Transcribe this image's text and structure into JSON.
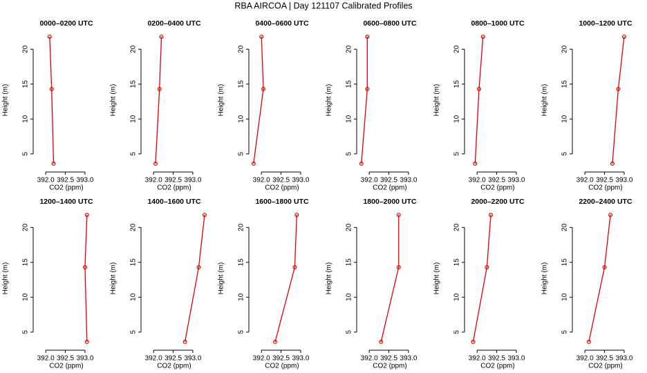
{
  "title": "RBA AIRCOA |  Day 121107  Calibrated Profiles",
  "chart_data": [
    {
      "type": "line",
      "title": "0000–0200 UTC",
      "xlabel": "CO2 (ppm)",
      "ylabel": "Height (m)",
      "color": "#e00000",
      "x": [
        392.2,
        392.15,
        392.1
      ],
      "values": [
        3.6,
        14.3,
        21.8
      ],
      "xlim": [
        391.75,
        393.3
      ],
      "ylim": [
        2.8,
        22.6
      ],
      "xticks": [
        {
          "value": 392,
          "label": "392.0"
        },
        392.5,
        {
          "value": 393,
          "label": "393.0"
        }
      ],
      "yticks": [
        5,
        10,
        15,
        20
      ]
    },
    {
      "type": "line",
      "title": "0200–0400 UTC",
      "xlabel": "CO2 (ppm)",
      "ylabel": "Height (m)",
      "color": "#e00000",
      "x": [
        392.05,
        392.15,
        392.2
      ],
      "values": [
        3.6,
        14.3,
        21.8
      ],
      "xlim": [
        391.75,
        393.3
      ],
      "ylim": [
        2.8,
        22.6
      ],
      "xticks": [
        {
          "value": 392,
          "label": "392.0"
        },
        392.5,
        {
          "value": 393,
          "label": "393.0"
        }
      ],
      "yticks": [
        5,
        10,
        15,
        20
      ]
    },
    {
      "type": "line",
      "title": "0400–0600 UTC",
      "xlabel": "CO2 (ppm)",
      "ylabel": "Height (m)",
      "color": "#e00000",
      "x": [
        391.8,
        392.05,
        392.0
      ],
      "values": [
        3.6,
        14.3,
        21.8
      ],
      "xlim": [
        391.75,
        393.3
      ],
      "ylim": [
        2.8,
        22.6
      ],
      "xticks": [
        {
          "value": 392,
          "label": "392.0"
        },
        392.5,
        {
          "value": 393,
          "label": "393.0"
        }
      ],
      "yticks": [
        5,
        10,
        15,
        20
      ]
    },
    {
      "type": "line",
      "title": "0600–0800 UTC",
      "xlabel": "CO2 (ppm)",
      "ylabel": "Height (m)",
      "color": "#e00000",
      "x": [
        391.8,
        391.95,
        391.95
      ],
      "values": [
        3.6,
        14.3,
        21.8
      ],
      "xlim": [
        391.75,
        393.3
      ],
      "ylim": [
        2.8,
        22.6
      ],
      "xticks": [
        {
          "value": 392,
          "label": "392.0"
        },
        392.5,
        {
          "value": 393,
          "label": "393.0"
        }
      ],
      "yticks": [
        5,
        10,
        15,
        20
      ]
    },
    {
      "type": "line",
      "title": "0800–1000 UTC",
      "xlabel": "CO2 (ppm)",
      "ylabel": "Height (m)",
      "color": "#e00000",
      "x": [
        391.95,
        392.05,
        392.15
      ],
      "values": [
        3.6,
        14.3,
        21.8
      ],
      "xlim": [
        391.75,
        393.3
      ],
      "ylim": [
        2.8,
        22.6
      ],
      "xticks": [
        {
          "value": 392,
          "label": "392.0"
        },
        392.5,
        {
          "value": 393,
          "label": "393.0"
        }
      ],
      "yticks": [
        5,
        10,
        15,
        20
      ]
    },
    {
      "type": "line",
      "title": "1000–1200 UTC",
      "xlabel": "CO2 (ppm)",
      "ylabel": "Height (m)",
      "color": "#e00000",
      "x": [
        392.7,
        392.85,
        393.0
      ],
      "values": [
        3.6,
        14.3,
        21.8
      ],
      "xlim": [
        391.75,
        393.3
      ],
      "ylim": [
        2.8,
        22.6
      ],
      "xticks": [
        {
          "value": 392,
          "label": "392.0"
        },
        392.5,
        {
          "value": 393,
          "label": "393.0"
        }
      ],
      "yticks": [
        5,
        10,
        15,
        20
      ]
    },
    {
      "type": "line",
      "title": "1200–1400 UTC",
      "xlabel": "CO2 (ppm)",
      "ylabel": "Height (m)",
      "color": "#e00000",
      "x": [
        393.05,
        393.0,
        393.05
      ],
      "values": [
        3.6,
        14.3,
        21.8
      ],
      "xlim": [
        391.75,
        393.3
      ],
      "ylim": [
        2.8,
        22.6
      ],
      "xticks": [
        {
          "value": 392,
          "label": "392.0"
        },
        392.5,
        {
          "value": 393,
          "label": "393.0"
        }
      ],
      "yticks": [
        5,
        10,
        15,
        20
      ]
    },
    {
      "type": "line",
      "title": "1400–1600 UTC",
      "xlabel": "CO2 (ppm)",
      "ylabel": "Height (m)",
      "color": "#e00000",
      "x": [
        392.8,
        393.15,
        393.3
      ],
      "values": [
        3.6,
        14.3,
        21.8
      ],
      "xlim": [
        391.75,
        393.3
      ],
      "ylim": [
        2.8,
        22.6
      ],
      "xticks": [
        {
          "value": 392,
          "label": "392.0"
        },
        392.5,
        {
          "value": 393,
          "label": "393.0"
        }
      ],
      "yticks": [
        5,
        10,
        15,
        20
      ]
    },
    {
      "type": "line",
      "title": "1600–1800 UTC",
      "xlabel": "CO2 (ppm)",
      "ylabel": "Height (m)",
      "color": "#e00000",
      "x": [
        392.35,
        392.85,
        392.9
      ],
      "values": [
        3.6,
        14.3,
        21.8
      ],
      "xlim": [
        391.75,
        393.3
      ],
      "ylim": [
        2.8,
        22.6
      ],
      "xticks": [
        {
          "value": 392,
          "label": "392.0"
        },
        392.5,
        {
          "value": 393,
          "label": "393.0"
        }
      ],
      "yticks": [
        5,
        10,
        15,
        20
      ]
    },
    {
      "type": "line",
      "title": "1800–2000 UTC",
      "xlabel": "CO2 (ppm)",
      "ylabel": "Height (m)",
      "color": "#e00000",
      "x": [
        392.3,
        392.75,
        392.75
      ],
      "values": [
        3.6,
        14.3,
        21.8
      ],
      "xlim": [
        391.75,
        393.3
      ],
      "ylim": [
        2.8,
        22.6
      ],
      "xticks": [
        {
          "value": 392,
          "label": "392.0"
        },
        392.5,
        {
          "value": 393,
          "label": "393.0"
        }
      ],
      "yticks": [
        5,
        10,
        15,
        20
      ]
    },
    {
      "type": "line",
      "title": "2000–2200 UTC",
      "xlabel": "CO2 (ppm)",
      "ylabel": "Height (m)",
      "color": "#e00000",
      "x": [
        391.9,
        392.25,
        392.35
      ],
      "values": [
        3.6,
        14.3,
        21.8
      ],
      "xlim": [
        391.75,
        393.3
      ],
      "ylim": [
        2.8,
        22.6
      ],
      "xticks": [
        {
          "value": 392,
          "label": "392.0"
        },
        392.5,
        {
          "value": 393,
          "label": "393.0"
        }
      ],
      "yticks": [
        5,
        10,
        15,
        20
      ]
    },
    {
      "type": "line",
      "title": "2200–2400 UTC",
      "xlabel": "CO2 (ppm)",
      "ylabel": "Height (m)",
      "color": "#e00000",
      "x": [
        392.1,
        392.5,
        392.65
      ],
      "values": [
        3.6,
        14.3,
        21.8
      ],
      "xlim": [
        391.75,
        393.3
      ],
      "ylim": [
        2.8,
        22.6
      ],
      "xticks": [
        {
          "value": 392,
          "label": "392.0"
        },
        392.5,
        {
          "value": 393,
          "label": "393.0"
        }
      ],
      "yticks": [
        5,
        10,
        15,
        20
      ]
    }
  ]
}
